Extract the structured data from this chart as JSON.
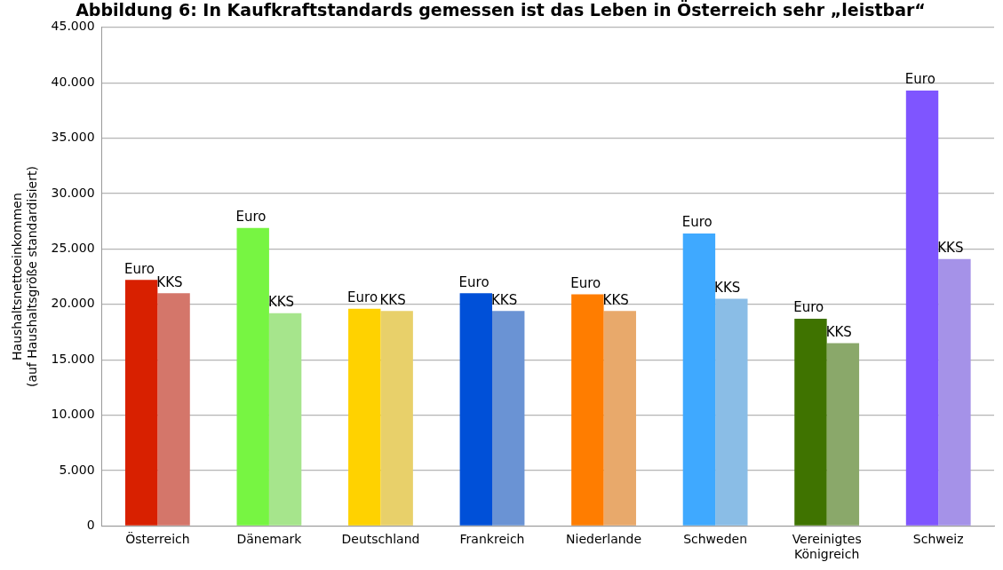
{
  "chart_data": {
    "type": "bar",
    "title": "Abbildung 6: In Kaufkraftstandards gemessen ist das Leben in Österreich sehr „leistbar“",
    "ylabel": "Haushaltsnettoeinkommen\n(auf Haushaltsgröße standardisiert)",
    "categories": [
      "Österreich",
      "Dänemark",
      "Deutschland",
      "Frankreich",
      "Niederlande",
      "Schweden",
      "Vereinigtes Königreich",
      "Schweiz"
    ],
    "series": [
      {
        "name": "Euro",
        "colors": [
          "#d82000",
          "#77f542",
          "#ffd200",
          "#0050d8",
          "#ff7d00",
          "#3fa9ff",
          "#3f7300",
          "#7f55ff"
        ],
        "values": [
          22200,
          26900,
          19600,
          21000,
          20900,
          26400,
          18700,
          39300
        ]
      },
      {
        "name": "KKS",
        "colors": [
          "#d4766a",
          "#a6e58c",
          "#e8d06a",
          "#6a93d4",
          "#e8a96b",
          "#8abde6",
          "#8aa86a",
          "#a592e8"
        ],
        "values": [
          21000,
          19200,
          19400,
          19400,
          19400,
          20500,
          16500,
          24100
        ]
      }
    ],
    "ylim": [
      0,
      45000
    ],
    "yticks": [
      0,
      {
        "value": 5000,
        "label": "5.000"
      },
      {
        "value": 10000,
        "label": "10.000"
      },
      {
        "value": 15000,
        "label": "15.000"
      },
      {
        "value": 20000,
        "label": "20.000"
      },
      {
        "value": 25000,
        "label": "25.000"
      },
      {
        "value": 30000,
        "label": "30.000"
      },
      {
        "value": 35000,
        "label": "35.000"
      },
      {
        "value": 40000,
        "label": "40.000"
      },
      {
        "value": 45000,
        "label": "45.000"
      }
    ],
    "grid": "y",
    "legend": false
  }
}
